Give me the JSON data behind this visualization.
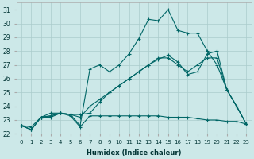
{
  "xlabel": "Humidex (Indice chaleur)",
  "background_color": "#cce8e8",
  "grid_color": "#aacccc",
  "line_color": "#006666",
  "xlim": [
    -0.5,
    23.5
  ],
  "ylim": [
    22,
    31.5
  ],
  "xticks": [
    0,
    1,
    2,
    3,
    4,
    5,
    6,
    7,
    8,
    9,
    10,
    11,
    12,
    13,
    14,
    15,
    16,
    17,
    18,
    19,
    20,
    21,
    22,
    23
  ],
  "yticks": [
    22,
    23,
    24,
    25,
    26,
    27,
    28,
    29,
    30,
    31
  ],
  "series": {
    "max": [
      22.6,
      22.5,
      23.2,
      23.5,
      23.5,
      23.4,
      22.6,
      26.7,
      27.0,
      26.5,
      27.0,
      27.8,
      28.9,
      30.3,
      30.2,
      31.0,
      29.5,
      29.3,
      29.3,
      28.0,
      27.0,
      25.2,
      24.0,
      22.7
    ],
    "min": [
      22.6,
      22.3,
      23.2,
      23.2,
      23.5,
      23.3,
      22.5,
      23.3,
      23.3,
      23.3,
      23.3,
      23.3,
      23.3,
      23.3,
      23.3,
      23.2,
      23.2,
      23.2,
      23.1,
      23.0,
      23.0,
      22.9,
      22.9,
      22.7
    ],
    "avg1": [
      22.6,
      22.3,
      23.2,
      23.3,
      23.5,
      23.4,
      23.4,
      23.5,
      24.3,
      25.0,
      25.5,
      26.0,
      26.5,
      27.0,
      27.4,
      27.7,
      27.2,
      26.3,
      26.5,
      27.8,
      28.0,
      25.2,
      24.0,
      22.7
    ],
    "avg2": [
      22.6,
      22.3,
      23.2,
      23.3,
      23.5,
      23.4,
      23.2,
      24.0,
      24.5,
      25.0,
      25.5,
      26.0,
      26.5,
      27.0,
      27.5,
      27.5,
      27.0,
      26.5,
      27.0,
      27.5,
      27.5,
      25.2,
      24.0,
      22.7
    ]
  }
}
